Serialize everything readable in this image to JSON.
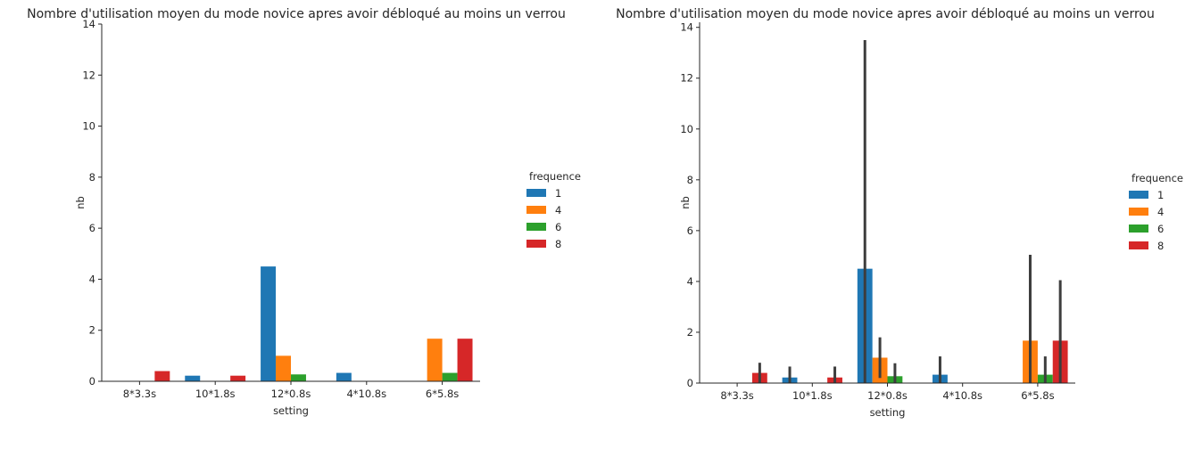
{
  "colors": {
    "1": "#1f77b4",
    "4": "#ff7f0e",
    "6": "#2ca02c",
    "8": "#d62728",
    "errorbar": "#3d3d3d",
    "axis": "#262626"
  },
  "chart_data": [
    {
      "type": "bar",
      "title": "Nombre d'utilisation moyen du mode novice apres avoir débloqué au moins un verrou",
      "xlabel": "setting",
      "ylabel": "nb",
      "categories": [
        "8*3.3s",
        "10*1.8s",
        "12*0.8s",
        "4*10.8s",
        "6*5.8s"
      ],
      "ylim": [
        0,
        14
      ],
      "yticks": [
        0,
        2,
        4,
        6,
        8,
        10,
        12,
        14
      ],
      "legend_title": "frequence",
      "legend_position": "right",
      "grid": false,
      "series": [
        {
          "name": "1",
          "values": [
            0,
            0.22,
            4.5,
            0.33,
            0
          ]
        },
        {
          "name": "4",
          "values": [
            0,
            0,
            1.0,
            0,
            1.67
          ]
        },
        {
          "name": "6",
          "values": [
            0,
            0,
            0.27,
            0,
            0.33
          ]
        },
        {
          "name": "8",
          "values": [
            0.4,
            0.22,
            0,
            0,
            1.67
          ]
        }
      ]
    },
    {
      "type": "bar",
      "title": "Nombre d'utilisation moyen du mode novice apres avoir débloqué au moins un verrou",
      "xlabel": "setting",
      "ylabel": "nb",
      "categories": [
        "8*3.3s",
        "10*1.8s",
        "12*0.8s",
        "4*10.8s",
        "6*5.8s"
      ],
      "ylim": [
        0,
        14.2
      ],
      "yticks": [
        0,
        2,
        4,
        6,
        8,
        10,
        12,
        14
      ],
      "legend_title": "frequence",
      "legend_position": "right",
      "grid": false,
      "series": [
        {
          "name": "1",
          "values": [
            0,
            0.22,
            4.5,
            0.33,
            0
          ],
          "ci_high": [
            0,
            0.65,
            13.5,
            1.05,
            0
          ]
        },
        {
          "name": "4",
          "values": [
            0,
            0,
            1.0,
            0,
            1.67
          ],
          "ci_low": [
            0,
            0,
            0.2,
            0,
            0
          ],
          "ci_high": [
            0,
            0,
            1.8,
            0,
            5.05
          ]
        },
        {
          "name": "6",
          "values": [
            0,
            0,
            0.27,
            0,
            0.33
          ],
          "ci_high": [
            0,
            0,
            0.78,
            0,
            1.05
          ]
        },
        {
          "name": "8",
          "values": [
            0.4,
            0.22,
            0,
            0,
            1.67
          ],
          "ci_high": [
            0.8,
            0.65,
            0,
            0,
            4.05
          ]
        }
      ]
    }
  ]
}
